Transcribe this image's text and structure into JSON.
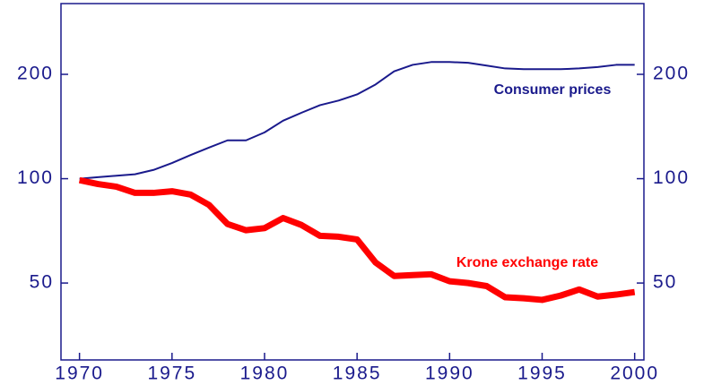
{
  "chart_data": {
    "type": "line",
    "x": [
      1970,
      1971,
      1972,
      1973,
      1974,
      1975,
      1976,
      1977,
      1978,
      1979,
      1980,
      1981,
      1982,
      1983,
      1984,
      1985,
      1986,
      1987,
      1988,
      1989,
      1990,
      1991,
      1992,
      1993,
      1994,
      1995,
      1996,
      1997,
      1998,
      1999,
      2000
    ],
    "series": [
      {
        "name": "Consumer prices",
        "color": "#1a1a8c",
        "width": 2,
        "values": [
          100,
          101,
          102,
          103,
          106,
          111,
          117,
          123,
          129,
          129,
          136,
          147,
          155,
          163,
          168,
          175,
          187,
          204,
          213,
          217,
          217,
          216,
          212,
          208,
          207,
          207,
          207,
          208,
          210,
          213,
          213
        ]
      },
      {
        "name": "Krone exchange rate",
        "color": "#ff0000",
        "width": 7,
        "values": [
          99,
          96.5,
          94.8,
          91,
          91,
          92,
          90,
          84,
          74,
          71,
          72,
          77,
          73.5,
          68.4,
          68,
          66.8,
          57.3,
          52.4,
          52.7,
          53,
          50.6,
          50,
          49,
          45.5,
          45.2,
          44.7,
          46,
          47.9,
          45.7,
          46.3,
          47.1
        ]
      }
    ],
    "xlim": [
      1969,
      2000.5
    ],
    "xticks": [
      1970,
      1975,
      1980,
      1985,
      1990,
      1995,
      2000
    ],
    "ylim": [
      30,
      320
    ],
    "yticks": [
      50,
      100,
      200
    ],
    "y_log": true,
    "y2lim": [
      30,
      320
    ],
    "y2ticks": [
      50,
      100,
      200
    ]
  }
}
